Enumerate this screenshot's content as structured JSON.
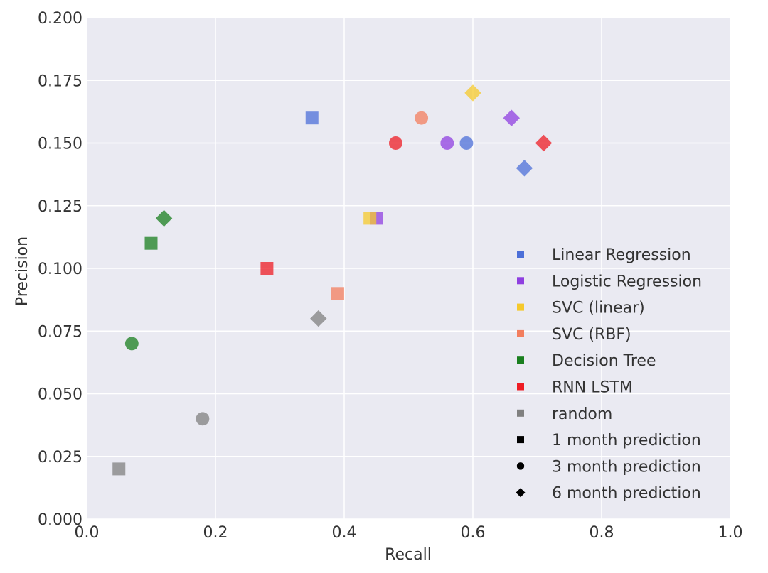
{
  "chart_data": {
    "type": "scatter",
    "xlabel": "Recall",
    "ylabel": "Precision",
    "xlim": [
      0.0,
      1.0
    ],
    "ylim": [
      0.0,
      0.2
    ],
    "xticks": [
      "0.0",
      "0.2",
      "0.4",
      "0.6",
      "0.8",
      "1.0"
    ],
    "yticks": [
      "0.000",
      "0.025",
      "0.050",
      "0.075",
      "0.100",
      "0.125",
      "0.150",
      "0.175",
      "0.200"
    ],
    "grid": true,
    "legend_position": "lower-right",
    "background": "#eaeaf2",
    "models": [
      {
        "name": "Linear Regression",
        "color": "#4c6fd8"
      },
      {
        "name": "Logistic Regression",
        "color": "#8f3fe0"
      },
      {
        "name": "SVC (linear)",
        "color": "#f5c92c"
      },
      {
        "name": "SVC (RBF)",
        "color": "#f37e5e"
      },
      {
        "name": "Decision Tree",
        "color": "#1a7f1f"
      },
      {
        "name": "RNN LSTM",
        "color": "#ee1c24"
      },
      {
        "name": "random",
        "color": "#808080"
      }
    ],
    "horizons": [
      {
        "name": "1 month prediction",
        "marker": "square"
      },
      {
        "name": "3 month prediction",
        "marker": "circle"
      },
      {
        "name": "6 month prediction",
        "marker": "diamond"
      }
    ],
    "points": [
      {
        "model": "Linear Regression",
        "marker": "square",
        "x": 0.35,
        "y": 0.16
      },
      {
        "model": "Linear Regression",
        "marker": "circle",
        "x": 0.59,
        "y": 0.15
      },
      {
        "model": "Linear Regression",
        "marker": "diamond",
        "x": 0.68,
        "y": 0.14
      },
      {
        "model": "Logistic Regression",
        "marker": "square",
        "x": 0.45,
        "y": 0.12
      },
      {
        "model": "Logistic Regression",
        "marker": "circle",
        "x": 0.56,
        "y": 0.15
      },
      {
        "model": "Logistic Regression",
        "marker": "diamond",
        "x": 0.66,
        "y": 0.16
      },
      {
        "model": "SVC (linear)",
        "marker": "square",
        "x": 0.44,
        "y": 0.12
      },
      {
        "model": "SVC (linear)",
        "marker": "diamond",
        "x": 0.6,
        "y": 0.17
      },
      {
        "model": "SVC (RBF)",
        "marker": "square",
        "x": 0.39,
        "y": 0.09
      },
      {
        "model": "SVC (RBF)",
        "marker": "circle",
        "x": 0.52,
        "y": 0.16
      },
      {
        "model": "Decision Tree",
        "marker": "square",
        "x": 0.1,
        "y": 0.11
      },
      {
        "model": "Decision Tree",
        "marker": "circle",
        "x": 0.07,
        "y": 0.07
      },
      {
        "model": "Decision Tree",
        "marker": "diamond",
        "x": 0.12,
        "y": 0.12
      },
      {
        "model": "RNN LSTM",
        "marker": "square",
        "x": 0.28,
        "y": 0.1
      },
      {
        "model": "RNN LSTM",
        "marker": "circle",
        "x": 0.48,
        "y": 0.15
      },
      {
        "model": "RNN LSTM",
        "marker": "diamond",
        "x": 0.71,
        "y": 0.15
      },
      {
        "model": "random",
        "marker": "square",
        "x": 0.05,
        "y": 0.02
      },
      {
        "model": "random",
        "marker": "circle",
        "x": 0.18,
        "y": 0.04
      },
      {
        "model": "random",
        "marker": "diamond",
        "x": 0.36,
        "y": 0.08
      }
    ]
  }
}
